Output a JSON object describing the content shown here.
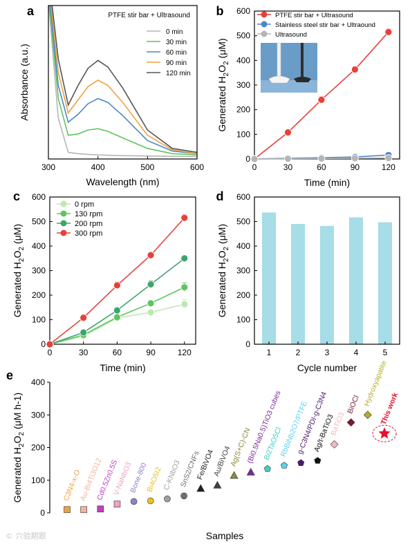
{
  "watermark": "© 穴验期跟",
  "colors": {
    "red": "#e8403a",
    "blue": "#4a87c8",
    "gray": "#b5b5b5",
    "green_light": "#bde8b0",
    "green_mid": "#5ec45e",
    "green_dark": "#3ca56e",
    "orange": "#f0a040",
    "dark_gray": "#555555",
    "bar": "#a6dde6"
  },
  "chart_data": [
    {
      "panel_label": "a",
      "type": "line",
      "title": "PTFE stir bar + Ultrasound",
      "xlabel": "Wavelength (nm)",
      "ylabel": "Absorbance (a.u.)",
      "xlim": [
        300,
        600
      ],
      "xticks": [
        "300",
        "400",
        "500",
        "600"
      ],
      "yticks_shown": false,
      "legend_position": "top-right",
      "legend_entries": [
        "0 min",
        "30 min",
        "60 min",
        "90 min",
        "120 min"
      ],
      "series": [
        {
          "name": "0 min",
          "color": "#b5b5b5",
          "x": [
            300,
            320,
            340,
            360,
            380,
            400,
            420,
            450,
            500,
            550,
            600
          ],
          "y": [
            1.2,
            0.3,
            0.04,
            0.03,
            0.025,
            0.02,
            0.018,
            0.015,
            0.012,
            0.01,
            0.008
          ]
        },
        {
          "name": "30 min",
          "color": "#5ec45e",
          "x": [
            300,
            320,
            340,
            360,
            380,
            400,
            420,
            450,
            500,
            550,
            600
          ],
          "y": [
            1.25,
            0.45,
            0.17,
            0.18,
            0.21,
            0.22,
            0.2,
            0.15,
            0.07,
            0.03,
            0.02
          ]
        },
        {
          "name": "60 min",
          "color": "#4a87c8",
          "x": [
            300,
            320,
            340,
            360,
            380,
            400,
            420,
            450,
            500,
            550,
            600
          ],
          "y": [
            1.3,
            0.55,
            0.27,
            0.33,
            0.41,
            0.45,
            0.42,
            0.32,
            0.13,
            0.05,
            0.03
          ]
        },
        {
          "name": "90 min",
          "color": "#f0a040",
          "x": [
            300,
            320,
            340,
            360,
            380,
            400,
            420,
            450,
            500,
            550,
            600
          ],
          "y": [
            1.35,
            0.65,
            0.34,
            0.44,
            0.54,
            0.59,
            0.55,
            0.42,
            0.17,
            0.06,
            0.03
          ]
        },
        {
          "name": "120 min",
          "color": "#555555",
          "x": [
            300,
            320,
            340,
            360,
            380,
            400,
            420,
            450,
            500,
            550,
            600
          ],
          "y": [
            1.4,
            0.75,
            0.4,
            0.55,
            0.68,
            0.74,
            0.69,
            0.53,
            0.21,
            0.07,
            0.04
          ]
        }
      ]
    },
    {
      "panel_label": "b",
      "type": "line",
      "xlabel": "Time (min)",
      "ylabel": "Generated H2O2 (μM)",
      "xlim": [
        0,
        130
      ],
      "ylim": [
        0,
        600
      ],
      "xticks": [
        0,
        30,
        60,
        90,
        120
      ],
      "yticks": [
        0,
        100,
        200,
        300,
        400,
        500,
        600
      ],
      "legend_position": "top-left",
      "inset": "photo of PTFE and stainless steel stir bars",
      "series": [
        {
          "name": "PTFE stir bar + Ultrasound",
          "color": "#e8403a",
          "x": [
            0,
            30,
            60,
            90,
            120
          ],
          "y": [
            0,
            108,
            240,
            363,
            515
          ],
          "err": [
            0,
            5,
            14,
            6,
            14
          ]
        },
        {
          "name": "Stainless steel stir bar + Ultraound",
          "color": "#4a87c8",
          "x": [
            0,
            30,
            60,
            90,
            120
          ],
          "y": [
            0,
            3,
            5,
            8,
            16
          ],
          "err": [
            0,
            1,
            1,
            2,
            3
          ]
        },
        {
          "name": "Ultrasound",
          "color": "#b5b5b5",
          "x": [
            0,
            30,
            60,
            90,
            120
          ],
          "y": [
            0,
            1,
            2,
            3,
            4
          ],
          "err": [
            0,
            0,
            0,
            0,
            0
          ]
        }
      ]
    },
    {
      "panel_label": "c",
      "type": "line",
      "xlabel": "Time (min)",
      "ylabel": "Generated H2O2 (μM)",
      "xlim": [
        0,
        130
      ],
      "ylim": [
        0,
        600
      ],
      "xticks": [
        0,
        30,
        60,
        90,
        120
      ],
      "yticks": [
        0,
        100,
        200,
        300,
        400,
        500,
        600
      ],
      "legend_position": "top-left",
      "series": [
        {
          "name": "0 rpm",
          "color": "#bde8b0",
          "x": [
            0,
            30,
            60,
            90,
            120
          ],
          "y": [
            0,
            32,
            107,
            130,
            163
          ],
          "err": [
            0,
            4,
            6,
            8,
            18
          ]
        },
        {
          "name": "130 rpm",
          "color": "#5ec45e",
          "x": [
            0,
            30,
            60,
            90,
            120
          ],
          "y": [
            0,
            38,
            110,
            167,
            232
          ],
          "err": [
            0,
            5,
            8,
            12,
            18
          ]
        },
        {
          "name": "200 rpm",
          "color": "#3ca56e",
          "x": [
            0,
            30,
            60,
            90,
            120
          ],
          "y": [
            0,
            48,
            138,
            244,
            350
          ],
          "err": [
            0,
            5,
            8,
            15,
            8
          ]
        },
        {
          "name": "300 rpm",
          "color": "#e8403a",
          "x": [
            0,
            30,
            60,
            90,
            120
          ],
          "y": [
            0,
            108,
            240,
            363,
            515
          ],
          "err": [
            0,
            5,
            14,
            6,
            14
          ]
        }
      ]
    },
    {
      "panel_label": "d",
      "type": "bar",
      "xlabel": "Cycle number",
      "ylabel": "Generated H2O2 (μM)",
      "ylim": [
        0,
        600
      ],
      "yticks": [
        0,
        100,
        200,
        300,
        400,
        500,
        600
      ],
      "categories": [
        "1",
        "2",
        "3",
        "4",
        "5"
      ],
      "values": [
        537,
        490,
        482,
        517,
        497
      ]
    },
    {
      "panel_label": "e",
      "type": "scatter",
      "xlabel": "Samples",
      "ylabel": "Generated H2O2 (μM h-1)",
      "ylim": [
        0,
        400
      ],
      "yticks": [
        0,
        100,
        200,
        300,
        400
      ],
      "points": [
        {
          "label": "C3N4-x-O",
          "y": 10,
          "color": "#f0a040",
          "shape": "square"
        },
        {
          "label": "Au-Bi4Ti3O12",
          "y": 10,
          "color": "#f5b29a",
          "shape": "square"
        },
        {
          "label": "Cd0.5Zn0.5S",
          "y": 12,
          "color": "#c040c0",
          "shape": "square"
        },
        {
          "label": "V-NaNbO3",
          "y": 27,
          "color": "#f3a0c0",
          "shape": "square"
        },
        {
          "label": "Bone-800",
          "y": 35,
          "color": "#9080d0",
          "shape": "circle"
        },
        {
          "label": "Bi4O5I2",
          "y": 37,
          "color": "#e8c020",
          "shape": "circle"
        },
        {
          "label": "C-KNbO3",
          "y": 43,
          "color": "#a0a0a0",
          "shape": "circle"
        },
        {
          "label": "SnS2/CNFs",
          "y": 52,
          "color": "#707070",
          "shape": "circle"
        },
        {
          "label": "Fe/BiVO4",
          "y": 75,
          "color": "#202020",
          "shape": "triangle"
        },
        {
          "label": "Au/BiVO4",
          "y": 85,
          "color": "#404040",
          "shape": "triangle"
        },
        {
          "label": "Ag(S+C)-CN",
          "y": 115,
          "color": "#8a8a3a",
          "shape": "triangle"
        },
        {
          "label": "(Bi0.5Na0.5)TiO3 cubes",
          "y": 125,
          "color": "#7a2a9a",
          "shape": "triangle"
        },
        {
          "label": "Bi2TaO5Cl",
          "y": 135,
          "color": "#40d0c0",
          "shape": "pentagon"
        },
        {
          "label": "RbBiNb2O7/PTFE",
          "y": 145,
          "color": "#60d0f0",
          "shape": "pentagon"
        },
        {
          "label": "g-C3N4/PDI-g-C3N4",
          "y": 153,
          "color": "#4a1a6a",
          "shape": "pentagon"
        },
        {
          "label": "Ag/t-BaTiO3",
          "y": 160,
          "color": "#101010",
          "shape": "pentagon"
        },
        {
          "label": "BaTiO3",
          "y": 210,
          "color": "#f5b8c0",
          "shape": "diamond"
        },
        {
          "label": "BiOCl",
          "y": 277,
          "color": "#7a1a30",
          "shape": "diamond"
        },
        {
          "label": "Hydroxyapatite",
          "y": 300,
          "color": "#b0b020",
          "shape": "diamond"
        },
        {
          "label": "This work",
          "y": 243,
          "color": "#e8102a",
          "shape": "star"
        }
      ]
    }
  ]
}
